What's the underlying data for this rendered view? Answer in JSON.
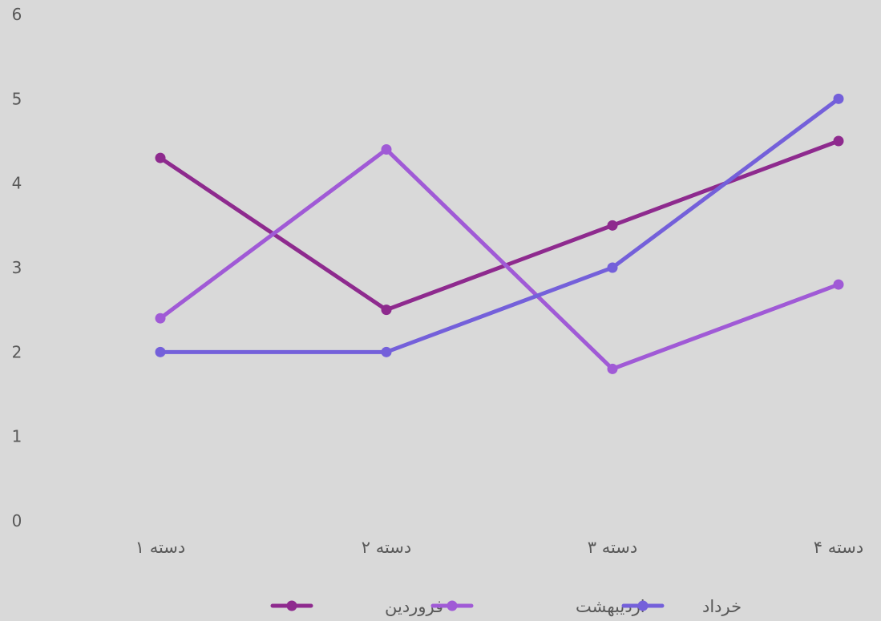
{
  "chart_data": {
    "type": "line",
    "categories": [
      "دسته ۱",
      "دسته ۲",
      "دسته ۳",
      "دسته ۴"
    ],
    "series": [
      {
        "name": "فروردین",
        "values": [
          4.3,
          2.5,
          3.5,
          4.5
        ],
        "color": "#8e2a8e"
      },
      {
        "name": "اردیبهشت",
        "values": [
          2.4,
          4.4,
          1.8,
          2.8
        ],
        "color": "#a05ad6"
      },
      {
        "name": "خرداد",
        "values": [
          2,
          2,
          3,
          5
        ],
        "color": "#7460da"
      }
    ],
    "ylim": [
      0,
      6
    ],
    "yticks": [
      "0",
      "1",
      "2",
      "3",
      "4",
      "5",
      "6"
    ],
    "grid": false,
    "legend": "bottom",
    "background": "#d9d9d9",
    "text_color": "#595959"
  }
}
